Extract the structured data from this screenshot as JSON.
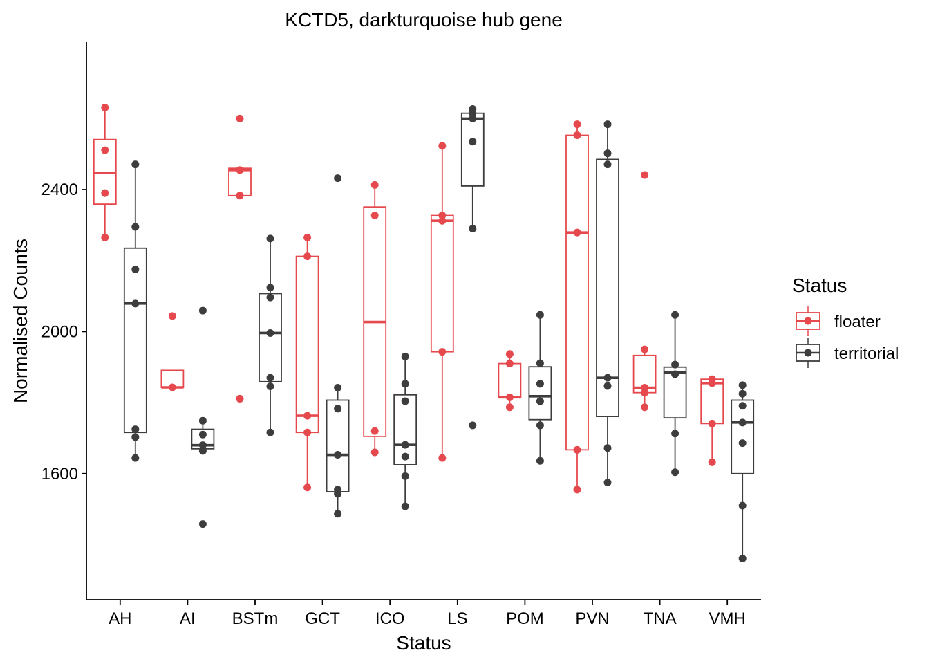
{
  "chart_data": {
    "type": "box",
    "title": "KCTD5, darkturquoise hub gene",
    "xlabel": "Status",
    "ylabel": "Normalised Counts",
    "ylim": [
      1245,
      2815
    ],
    "yticks": [
      1600,
      2000,
      2400
    ],
    "categories": [
      "AH",
      "AI",
      "BSTm",
      "GCT",
      "ICO",
      "LS",
      "POM",
      "PVN",
      "TNA",
      "VMH"
    ],
    "legend": {
      "title": "Status",
      "position": "right"
    },
    "grid": false,
    "series": [
      {
        "name": "floater",
        "color": "#e5494d",
        "boxes": [
          {
            "category": "AH",
            "q1": 2359,
            "median": 2447,
            "q3": 2541,
            "whisker_low": 2265,
            "whisker_high": 2631
          },
          {
            "category": "AI",
            "q1": 1843,
            "median": 1843,
            "q3": 1891,
            "whisker_low": 1843,
            "whisker_high": 1891
          },
          {
            "category": "BSTm",
            "q1": 2383,
            "median": 2455,
            "q3": 2460,
            "whisker_low": 2383,
            "whisker_high": 2460
          },
          {
            "category": "GCT",
            "q1": 1716,
            "median": 1763,
            "q3": 2212,
            "whisker_low": 1561,
            "whisker_high": 2265
          },
          {
            "category": "ICO",
            "q1": 1705,
            "median": 2027,
            "q3": 2351,
            "whisker_low": 1660,
            "whisker_high": 2413
          },
          {
            "category": "LS",
            "q1": 1943,
            "median": 2312,
            "q3": 2327,
            "whisker_low": 1644,
            "whisker_high": 2523
          },
          {
            "category": "POM",
            "q1": 1815,
            "median": 1815,
            "q3": 1910,
            "whisker_low": 1787,
            "whisker_high": 1937
          },
          {
            "category": "PVN",
            "q1": 1667,
            "median": 2279,
            "q3": 2553,
            "whisker_low": 1555,
            "whisker_high": 2584
          },
          {
            "category": "TNA",
            "q1": 1828,
            "median": 1842,
            "q3": 1933,
            "whisker_low": 1787,
            "whisker_high": 1950
          },
          {
            "category": "VMH",
            "q1": 1741,
            "median": 1855,
            "q3": 1866,
            "whisker_low": 1632,
            "whisker_high": 1866
          }
        ],
        "points": [
          {
            "category": "AH",
            "values": [
              2631,
              2511,
              2390,
              2265
            ]
          },
          {
            "category": "AI",
            "values": [
              2044,
              1843
            ]
          },
          {
            "category": "BSTm",
            "values": [
              2600,
              2455,
              2383,
              1811
            ]
          },
          {
            "category": "GCT",
            "values": [
              2265,
              2212,
              1763,
              1716,
              1561
            ]
          },
          {
            "category": "ICO",
            "values": [
              2413,
              2327,
              1720,
              1660
            ]
          },
          {
            "category": "LS",
            "values": [
              2523,
              2327,
              2312,
              1943,
              1644
            ]
          },
          {
            "category": "POM",
            "values": [
              1937,
              1910,
              1815,
              1787
            ]
          },
          {
            "category": "PVN",
            "values": [
              2584,
              2553,
              2279,
              1667,
              1555
            ]
          },
          {
            "category": "TNA",
            "values": [
              2441,
              1950,
              1842,
              1828,
              1787
            ]
          },
          {
            "category": "VMH",
            "values": [
              1866,
              1855,
              1741,
              1632
            ]
          }
        ]
      },
      {
        "name": "territorial",
        "color": "#3d3d3d",
        "boxes": [
          {
            "category": "AH",
            "q1": 1716,
            "median": 2079,
            "q3": 2235,
            "whisker_low": 1644,
            "whisker_high": 2471
          },
          {
            "category": "AI",
            "q1": 1670,
            "median": 1680,
            "q3": 1725,
            "whisker_low": 1660,
            "whisker_high": 1749
          },
          {
            "category": "BSTm",
            "q1": 1859,
            "median": 1996,
            "q3": 2107,
            "whisker_low": 1716,
            "whisker_high": 2262
          },
          {
            "category": "GCT",
            "q1": 1549,
            "median": 1653,
            "q3": 1807,
            "whisker_low": 1487,
            "whisker_high": 1842
          },
          {
            "category": "ICO",
            "q1": 1625,
            "median": 1681,
            "q3": 1822,
            "whisker_low": 1508,
            "whisker_high": 1930
          },
          {
            "category": "LS",
            "q1": 2410,
            "median": 2600,
            "q3": 2615,
            "whisker_low": 2290,
            "whisker_high": 2627
          },
          {
            "category": "POM",
            "q1": 1752,
            "median": 1818,
            "q3": 1901,
            "whisker_low": 1636,
            "whisker_high": 2047
          },
          {
            "category": "PVN",
            "q1": 1761,
            "median": 1870,
            "q3": 2485,
            "whisker_low": 1575,
            "whisker_high": 2584
          },
          {
            "category": "TNA",
            "q1": 1757,
            "median": 1885,
            "q3": 1900,
            "whisker_low": 1604,
            "whisker_high": 2047
          },
          {
            "category": "VMH",
            "q1": 1600,
            "median": 1744,
            "q3": 1807,
            "whisker_low": 1361,
            "whisker_high": 1849
          }
        ],
        "points": [
          {
            "category": "AH",
            "values": [
              2471,
              2295,
              2175,
              2079,
              1725,
              1703,
              1644
            ]
          },
          {
            "category": "AI",
            "values": [
              2059,
              1749,
              1710,
              1680,
              1664,
              1458
            ]
          },
          {
            "category": "BSTm",
            "values": [
              2262,
              2124,
              2096,
              1996,
              1870,
              1846,
              1716
            ]
          },
          {
            "category": "GCT",
            "values": [
              2432,
              1842,
              1783,
              1653,
              1555,
              1543,
              1487
            ]
          },
          {
            "category": "ICO",
            "values": [
              1930,
              1853,
              1804,
              1681,
              1648,
              1593,
              1508
            ]
          },
          {
            "category": "LS",
            "values": [
              2627,
              2615,
              2600,
              2535,
              2290,
              1736
            ]
          },
          {
            "category": "POM",
            "values": [
              2047,
              1911,
              1853,
              1804,
              1736,
              1636
            ]
          },
          {
            "category": "PVN",
            "values": [
              2584,
              2502,
              2471,
              1870,
              1847,
              1672,
              1575
            ]
          },
          {
            "category": "TNA",
            "values": [
              2047,
              1907,
              1880,
              1713,
              1604
            ]
          },
          {
            "category": "VMH",
            "values": [
              1849,
              1825,
              1791,
              1744,
              1686,
              1510,
              1361
            ]
          }
        ]
      }
    ]
  }
}
